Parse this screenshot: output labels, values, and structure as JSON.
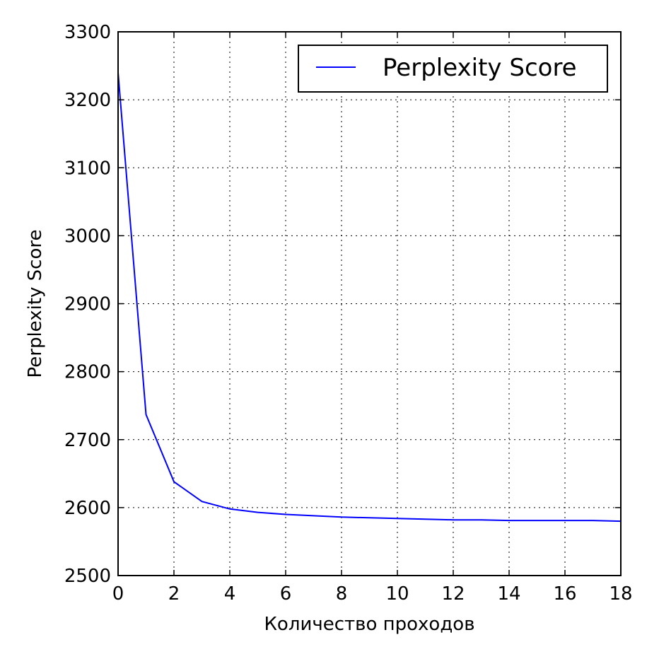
{
  "chart_data": {
    "type": "line",
    "title": "",
    "xlabel": "Количество проходов",
    "ylabel": "Perplexity Score",
    "xlim": [
      0,
      18
    ],
    "ylim": [
      2500,
      3300
    ],
    "xticks": [
      0,
      2,
      4,
      6,
      8,
      10,
      12,
      14,
      16,
      18
    ],
    "yticks": [
      2500,
      2600,
      2700,
      2800,
      2900,
      3000,
      3100,
      3200,
      3300
    ],
    "xtick_labels": [
      "0",
      "2",
      "4",
      "6",
      "8",
      "10",
      "12",
      "14",
      "16",
      "18"
    ],
    "ytick_labels": [
      "2500",
      "2600",
      "2700",
      "2800",
      "2900",
      "3000",
      "3100",
      "3200",
      "3300"
    ],
    "grid": true,
    "legend_position": "top-right",
    "colors": {
      "series": "#0000ff",
      "grid": "#000000",
      "axes": "#000000"
    },
    "series": [
      {
        "name": "Perplexity Score",
        "x": [
          0,
          1,
          2,
          3,
          4,
          5,
          6,
          7,
          8,
          9,
          10,
          11,
          12,
          13,
          14,
          15,
          16,
          17,
          18
        ],
        "values": [
          3240,
          2737,
          2638,
          2609,
          2598,
          2593,
          2590,
          2588,
          2586,
          2585,
          2584,
          2583,
          2582,
          2582,
          2581,
          2581,
          2581,
          2581,
          2580
        ]
      }
    ]
  }
}
